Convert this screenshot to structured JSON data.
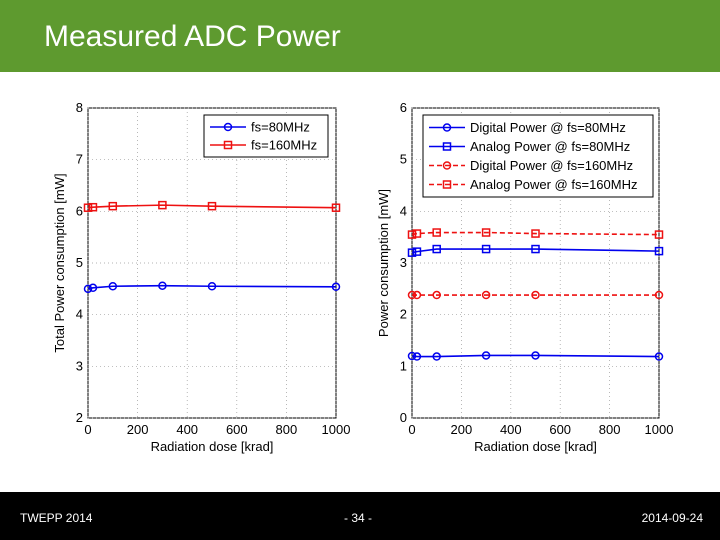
{
  "slide": {
    "title": "Measured ADC Power",
    "footer_left": "TWEPP 2014",
    "footer_center": "- 34 -",
    "footer_right": "2014-09-24"
  },
  "colors": {
    "header": "#5e9a2f",
    "blue": "#0000ee",
    "red": "#ee1111"
  },
  "chart_data": [
    {
      "type": "line",
      "xlabel": "Radiation dose [krad]",
      "ylabel": "Total Power consumption [mW]",
      "xlim": [
        0,
        1000
      ],
      "ylim": [
        2,
        8
      ],
      "xticks": [
        0,
        200,
        400,
        600,
        800,
        1000
      ],
      "yticks": [
        2,
        3,
        4,
        5,
        6,
        7,
        8
      ],
      "grid": "dotted",
      "legend": "top-right",
      "series": [
        {
          "name": "fs=80MHz",
          "color": "#0000ee",
          "marker": "circle",
          "dashed": false,
          "x": [
            0,
            20,
            100,
            300,
            500,
            1000
          ],
          "y": [
            4.5,
            4.52,
            4.55,
            4.56,
            4.55,
            4.54
          ]
        },
        {
          "name": "fs=160MHz",
          "color": "#ee1111",
          "marker": "square",
          "dashed": false,
          "x": [
            0,
            20,
            100,
            300,
            500,
            1000
          ],
          "y": [
            6.07,
            6.08,
            6.1,
            6.12,
            6.1,
            6.07
          ]
        }
      ]
    },
    {
      "type": "line",
      "xlabel": "Radiation dose [krad]",
      "ylabel": "Power consumption [mW]",
      "xlim": [
        0,
        1000
      ],
      "ylim": [
        0,
        6
      ],
      "xticks": [
        0,
        200,
        400,
        600,
        800,
        1000
      ],
      "yticks": [
        0,
        1,
        2,
        3,
        4,
        5,
        6
      ],
      "grid": "dotted",
      "legend": "top-right",
      "series": [
        {
          "name": "Digital Power @ fs=80MHz",
          "color": "#0000ee",
          "marker": "circle",
          "dashed": false,
          "x": [
            0,
            20,
            100,
            300,
            500,
            1000
          ],
          "y": [
            1.2,
            1.19,
            1.19,
            1.21,
            1.21,
            1.19
          ]
        },
        {
          "name": "Analog Power @ fs=80MHz",
          "color": "#0000ee",
          "marker": "square",
          "dashed": false,
          "x": [
            0,
            20,
            100,
            300,
            500,
            1000
          ],
          "y": [
            3.2,
            3.22,
            3.27,
            3.27,
            3.27,
            3.23
          ]
        },
        {
          "name": "Digital Power @ fs=160MHz",
          "color": "#ee1111",
          "marker": "circle",
          "dashed": true,
          "x": [
            0,
            20,
            100,
            300,
            500,
            1000
          ],
          "y": [
            2.38,
            2.38,
            2.38,
            2.38,
            2.38,
            2.38
          ]
        },
        {
          "name": "Analog Power @ fs=160MHz",
          "color": "#ee1111",
          "marker": "square",
          "dashed": true,
          "x": [
            0,
            20,
            100,
            300,
            500,
            1000
          ],
          "y": [
            3.55,
            3.57,
            3.59,
            3.59,
            3.57,
            3.55
          ]
        }
      ]
    }
  ]
}
